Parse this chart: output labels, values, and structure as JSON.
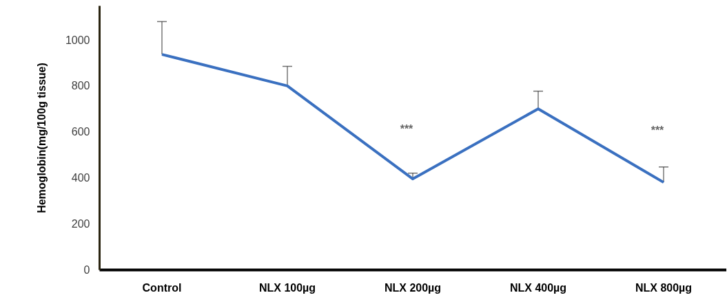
{
  "chart_data": {
    "type": "line",
    "ylabel": "Hemoglobin(mg/100g tissue)",
    "categories": [
      "Control",
      "NLX 100µg",
      "NLX 200µg",
      "NLX 400µg",
      "NLX  800µg"
    ],
    "series": [
      {
        "color": "#3a70c0",
        "values": [
          937,
          800,
          395,
          700,
          380
        ],
        "errors": [
          [
            937,
            1080
          ],
          [
            800,
            885
          ],
          [
            395,
            420
          ],
          [
            700,
            777
          ],
          [
            380,
            447
          ]
        ]
      }
    ],
    "ylim": [
      0,
      1150
    ],
    "yticks": [
      0,
      200,
      400,
      600,
      800,
      1000
    ],
    "grid": false,
    "marker": "none",
    "line_style": "solid",
    "annotations": [
      "***",
      "***"
    ]
  }
}
